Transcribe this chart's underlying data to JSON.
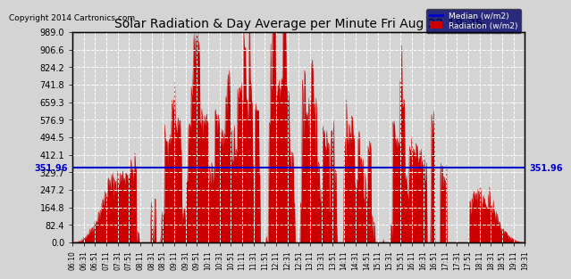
{
  "title": "Solar Radiation & Day Average per Minute Fri Aug 22 19:35",
  "copyright": "Copyright 2014 Cartronics.com",
  "median_value": 351.96,
  "y_max": 989.0,
  "y_min": 0.0,
  "yticks": [
    0.0,
    82.4,
    164.8,
    247.2,
    329.7,
    412.1,
    494.5,
    576.9,
    659.3,
    741.8,
    824.2,
    906.6,
    989.0
  ],
  "ytick_labels": [
    "0.0",
    "82.4",
    "164.8",
    "247.2",
    "329.7",
    "412.1",
    "494.5",
    "576.9",
    "659.3",
    "741.8",
    "824.2",
    "906.6",
    "989.0"
  ],
  "background_color": "#d4d4d4",
  "plot_bg_color": "#d4d4d4",
  "bar_color": "#cc0000",
  "median_line_color": "#0000cc",
  "legend_median_color": "#0000cc",
  "legend_radiation_color": "#cc0000",
  "title_color": "#000000",
  "copyright_color": "#000000",
  "grid_color": "#ffffff",
  "tick_label_color": "#000000",
  "xtick_labels": [
    "06:10",
    "06:31",
    "06:51",
    "07:11",
    "07:31",
    "07:51",
    "08:11",
    "08:31",
    "08:51",
    "09:11",
    "09:31",
    "09:51",
    "10:11",
    "10:31",
    "10:51",
    "11:11",
    "11:31",
    "11:51",
    "12:11",
    "12:31",
    "12:51",
    "13:11",
    "13:31",
    "13:51",
    "14:11",
    "14:31",
    "14:51",
    "15:11",
    "15:31",
    "15:51",
    "16:11",
    "16:31",
    "16:51",
    "17:11",
    "17:31",
    "17:51",
    "18:11",
    "18:31",
    "18:51",
    "19:11",
    "19:31"
  ],
  "num_points": 820,
  "seed": 42
}
